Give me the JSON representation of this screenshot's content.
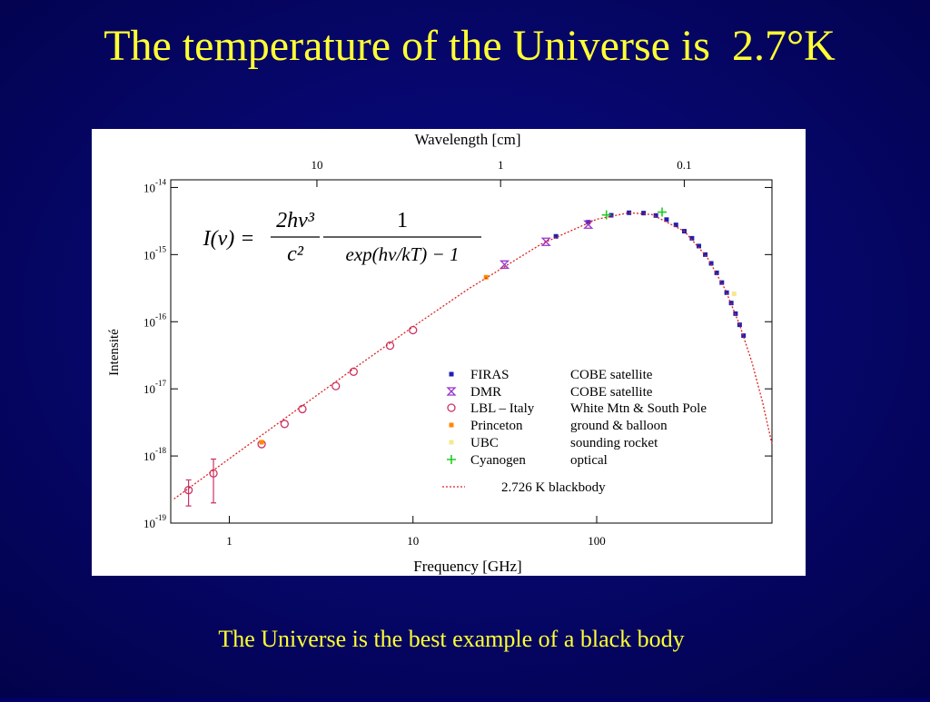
{
  "header": {
    "title": "The temperature of the Universe is  2.7°K"
  },
  "caption": "The Universe is the best example of a black body",
  "chart_data": {
    "type": "scatter",
    "xlabel": "Frequency [GHz]",
    "x2label": "Wavelength [cm]",
    "ylabel": "Intensité",
    "log_x": true,
    "log_y": true,
    "xlim": [
      0.48,
      900
    ],
    "xticks": [
      1,
      10,
      100
    ],
    "x2lim": [
      62.5,
      0.0333
    ],
    "x2ticks": [
      10,
      1,
      0.1
    ],
    "ylim": [
      1e-19,
      1.3e-14
    ],
    "yticks": [
      {
        "value": 1e-19,
        "label": "10",
        "exponent": "-19"
      },
      {
        "value": 1e-18,
        "label": "10",
        "exponent": "-18"
      },
      {
        "value": 1e-17,
        "label": "10",
        "exponent": "-17"
      },
      {
        "value": 1e-16,
        "label": "10",
        "exponent": "-16"
      },
      {
        "value": 1e-15,
        "label": "10",
        "exponent": "-15"
      },
      {
        "value": 1e-14,
        "label": "10",
        "exponent": "-14"
      }
    ],
    "formula": {
      "lhs": "I(ν) =",
      "fraction1": {
        "numerator": "2hν³",
        "denominator": "c²"
      },
      "fraction2": {
        "numerator": "1",
        "denominator": "exp(hν/kT) − 1"
      }
    },
    "series": [
      {
        "name": "FIRAS",
        "description": "COBE satellite",
        "marker": "square",
        "color": "#2020b0",
        "x": [
          60,
          90,
          120,
          150,
          180,
          210,
          240,
          270,
          300,
          330,
          360,
          390,
          420,
          450,
          480,
          510,
          540,
          570,
          600,
          630
        ],
        "values": [
          1.87e-15,
          3.04e-15,
          3.85e-15,
          4.2e-15,
          4.15e-15,
          3.82e-15,
          3.32e-15,
          2.77e-15,
          2.23e-15,
          1.75e-15,
          1.34e-15,
          1e-15,
          7.4e-16,
          5.35e-16,
          3.83e-16,
          2.71e-16,
          1.9e-16,
          1.32e-16,
          9e-17,
          6.2e-17
        ]
      },
      {
        "name": "DMR",
        "description": "COBE satellite",
        "marker": "hourglass",
        "color": "#9933cc",
        "x": [
          31.5,
          53,
          90
        ],
        "values": [
          7.1e-16,
          1.55e-15,
          2.8e-15
        ]
      },
      {
        "name": "LBL – Italy",
        "description": "White Mtn & South Pole",
        "marker": "circle",
        "color": "#cc3366",
        "x": [
          0.6,
          0.82,
          1.5,
          2.0,
          2.5,
          3.8,
          4.75,
          7.5,
          10
        ],
        "values": [
          3.1e-19,
          5.5e-19,
          1.5e-18,
          3e-18,
          5e-18,
          1.1e-17,
          1.8e-17,
          4.4e-17,
          7.5e-17
        ],
        "errors": [
          1.3e-19,
          3.5e-19,
          null,
          null,
          null,
          null,
          null,
          null,
          null
        ]
      },
      {
        "name": "Princeton",
        "description": "ground & balloon",
        "marker": "square",
        "color": "#ff8800",
        "x": [
          1.5,
          25
        ],
        "values": [
          1.6e-18,
          4.6e-16
        ]
      },
      {
        "name": "UBC",
        "description": "sounding rocket",
        "marker": "square",
        "color": "#f5e890",
        "x": [
          560
        ],
        "values": [
          2.6e-16
        ]
      },
      {
        "name": "Cyanogen",
        "description": "optical",
        "marker": "plus",
        "color": "#22cc22",
        "x": [
          113,
          227
        ],
        "values": [
          3.9e-15,
          4.3e-15
        ]
      },
      {
        "name": "2.726 K blackbody",
        "marker": "line",
        "color": "#dd2222",
        "x": [
          0.5,
          1,
          2,
          5,
          10,
          20,
          50,
          100,
          150,
          200,
          300,
          400,
          500,
          600,
          700,
          800,
          900
        ],
        "values": [
          2.29e-19,
          9.1e-19,
          3.6e-18,
          2.2e-17,
          8.4e-17,
          3.07e-16,
          1.44e-15,
          3.36e-15,
          4.2e-15,
          3.95e-15,
          2.23e-15,
          9.07e-16,
          3.05e-16,
          9e-17,
          2.5e-17,
          6.3e-18,
          1.5e-18
        ]
      }
    ]
  }
}
